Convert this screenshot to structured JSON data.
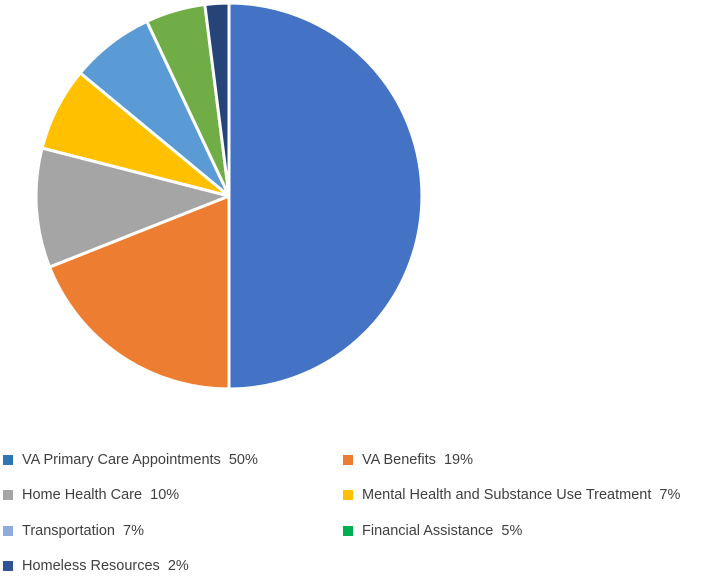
{
  "chart_data": {
    "type": "pie",
    "slices": [
      {
        "label": "VA Primary Care Appointments",
        "value": 50,
        "value_label": "50%",
        "color": "#4472C4"
      },
      {
        "label": "VA Benefits",
        "value": 19,
        "value_label": "19%",
        "color": "#ED7D31"
      },
      {
        "label": "Home Health Care",
        "value": 10,
        "value_label": "10%",
        "color": "#A5A5A5"
      },
      {
        "label": "Mental Health and Substance Use Treatment",
        "value": 7,
        "value_label": "7%",
        "color": "#FFC000"
      },
      {
        "label": "Transportation",
        "value": 7,
        "value_label": "7%",
        "color": "#5B9BD5"
      },
      {
        "label": "Financial Assistance",
        "value": 5,
        "value_label": "5%",
        "color": "#70AD47"
      },
      {
        "label": "Homeless Resources",
        "value": 2,
        "value_label": "2%",
        "color": "#264478"
      }
    ],
    "legend_swatch_colors": [
      "#2E75B6",
      "#ED7D31",
      "#A5A5A5",
      "#FFC000",
      "#8FAADC",
      "#00B050",
      "#2F5597"
    ],
    "start_angle": "12 o'clock",
    "direction": "clockwise",
    "legend_position": "bottom"
  }
}
